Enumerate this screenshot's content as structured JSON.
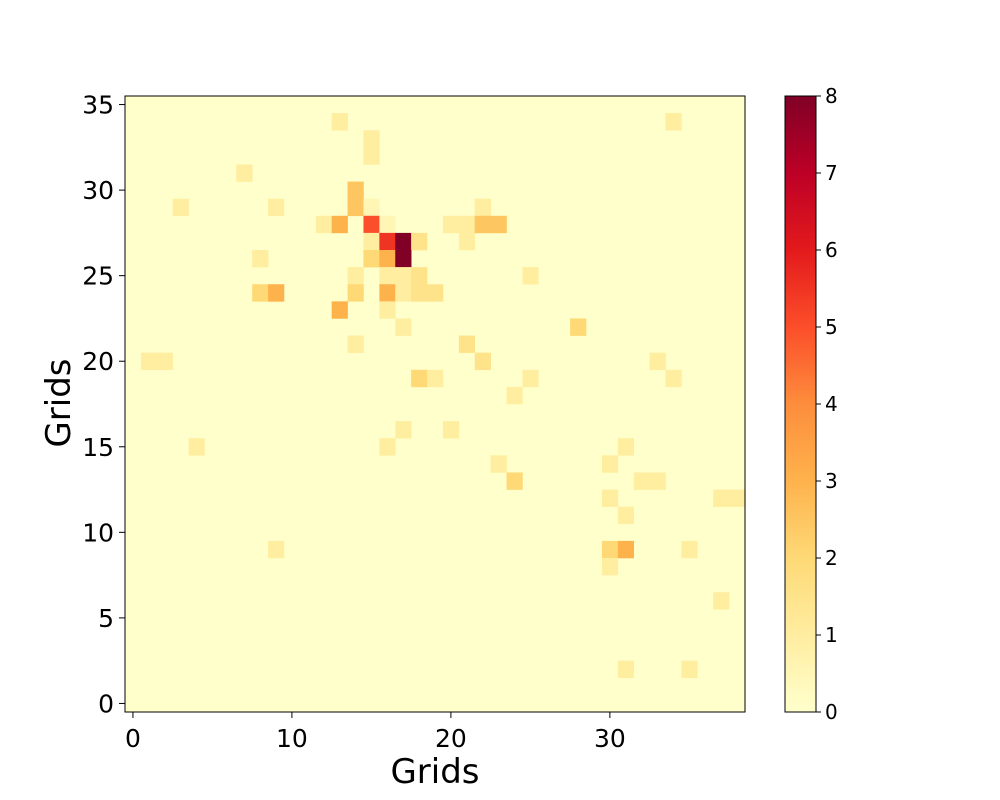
{
  "chart_data": {
    "type": "heatmap",
    "title": "",
    "xlabel": "Grids",
    "ylabel": "Grids",
    "cols": 39,
    "rows": 36,
    "xlim": [
      -0.5,
      38.5
    ],
    "ylim": [
      -0.5,
      35.5
    ],
    "xticks": [
      0,
      10,
      20,
      30
    ],
    "yticks": [
      0,
      5,
      10,
      15,
      20,
      25,
      30,
      35
    ],
    "colorbar": {
      "min": 0,
      "max": 8,
      "ticks": [
        0,
        1,
        2,
        3,
        4,
        5,
        6,
        7,
        8
      ],
      "colormap": "YlOrRd",
      "stops": [
        "#ffffcc",
        "#ffeda0",
        "#fed976",
        "#feb24c",
        "#fd8d3c",
        "#fc4e2a",
        "#e31a1c",
        "#bd0026",
        "#800026"
      ]
    },
    "background_value": 0,
    "cells": [
      {
        "x": 13,
        "y": 34,
        "v": 1
      },
      {
        "x": 34,
        "y": 34,
        "v": 1
      },
      {
        "x": 15,
        "y": 33,
        "v": 1
      },
      {
        "x": 15,
        "y": 32,
        "v": 1
      },
      {
        "x": 7,
        "y": 31,
        "v": 1
      },
      {
        "x": 14,
        "y": 30,
        "v": 2.5
      },
      {
        "x": 3,
        "y": 29,
        "v": 1
      },
      {
        "x": 9,
        "y": 29,
        "v": 1
      },
      {
        "x": 14,
        "y": 29,
        "v": 2.5
      },
      {
        "x": 15,
        "y": 29,
        "v": 0.5
      },
      {
        "x": 22,
        "y": 29,
        "v": 1
      },
      {
        "x": 12,
        "y": 28,
        "v": 1
      },
      {
        "x": 13,
        "y": 28,
        "v": 3
      },
      {
        "x": 15,
        "y": 28,
        "v": 5
      },
      {
        "x": 16,
        "y": 28,
        "v": 0.5
      },
      {
        "x": 20,
        "y": 28,
        "v": 1
      },
      {
        "x": 21,
        "y": 28,
        "v": 1
      },
      {
        "x": 22,
        "y": 28,
        "v": 2.5
      },
      {
        "x": 23,
        "y": 28,
        "v": 2.5
      },
      {
        "x": 15,
        "y": 27,
        "v": 1
      },
      {
        "x": 16,
        "y": 27,
        "v": 5.5
      },
      {
        "x": 17,
        "y": 27,
        "v": 8
      },
      {
        "x": 18,
        "y": 27,
        "v": 1.5
      },
      {
        "x": 21,
        "y": 27,
        "v": 1
      },
      {
        "x": 8,
        "y": 26,
        "v": 1
      },
      {
        "x": 15,
        "y": 26,
        "v": 2
      },
      {
        "x": 16,
        "y": 26,
        "v": 3
      },
      {
        "x": 17,
        "y": 26,
        "v": 8
      },
      {
        "x": 14,
        "y": 25,
        "v": 1
      },
      {
        "x": 16,
        "y": 25,
        "v": 1
      },
      {
        "x": 17,
        "y": 25,
        "v": 1
      },
      {
        "x": 18,
        "y": 25,
        "v": 1.5
      },
      {
        "x": 25,
        "y": 25,
        "v": 1
      },
      {
        "x": 8,
        "y": 24,
        "v": 2
      },
      {
        "x": 9,
        "y": 24,
        "v": 3
      },
      {
        "x": 14,
        "y": 24,
        "v": 2
      },
      {
        "x": 16,
        "y": 24,
        "v": 3
      },
      {
        "x": 17,
        "y": 24,
        "v": 1
      },
      {
        "x": 18,
        "y": 24,
        "v": 1.5
      },
      {
        "x": 19,
        "y": 24,
        "v": 1.5
      },
      {
        "x": 13,
        "y": 23,
        "v": 3
      },
      {
        "x": 16,
        "y": 23,
        "v": 1
      },
      {
        "x": 17,
        "y": 22,
        "v": 1
      },
      {
        "x": 28,
        "y": 22,
        "v": 2
      },
      {
        "x": 14,
        "y": 21,
        "v": 1
      },
      {
        "x": 21,
        "y": 21,
        "v": 1.5
      },
      {
        "x": 1,
        "y": 20,
        "v": 1
      },
      {
        "x": 2,
        "y": 20,
        "v": 1
      },
      {
        "x": 22,
        "y": 20,
        "v": 1.5
      },
      {
        "x": 33,
        "y": 20,
        "v": 1
      },
      {
        "x": 18,
        "y": 19,
        "v": 2
      },
      {
        "x": 19,
        "y": 19,
        "v": 1
      },
      {
        "x": 25,
        "y": 19,
        "v": 1
      },
      {
        "x": 34,
        "y": 19,
        "v": 1
      },
      {
        "x": 24,
        "y": 18,
        "v": 1
      },
      {
        "x": 17,
        "y": 16,
        "v": 1
      },
      {
        "x": 20,
        "y": 16,
        "v": 1
      },
      {
        "x": 4,
        "y": 15,
        "v": 1
      },
      {
        "x": 16,
        "y": 15,
        "v": 1
      },
      {
        "x": 31,
        "y": 15,
        "v": 1
      },
      {
        "x": 23,
        "y": 14,
        "v": 1
      },
      {
        "x": 30,
        "y": 14,
        "v": 1
      },
      {
        "x": 24,
        "y": 13,
        "v": 2
      },
      {
        "x": 32,
        "y": 13,
        "v": 1
      },
      {
        "x": 33,
        "y": 13,
        "v": 1
      },
      {
        "x": 30,
        "y": 12,
        "v": 1
      },
      {
        "x": 37,
        "y": 12,
        "v": 1
      },
      {
        "x": 38,
        "y": 12,
        "v": 1
      },
      {
        "x": 31,
        "y": 11,
        "v": 1
      },
      {
        "x": 9,
        "y": 9,
        "v": 1
      },
      {
        "x": 30,
        "y": 9,
        "v": 2
      },
      {
        "x": 31,
        "y": 9,
        "v": 3
      },
      {
        "x": 35,
        "y": 9,
        "v": 1
      },
      {
        "x": 30,
        "y": 8,
        "v": 1
      },
      {
        "x": 37,
        "y": 6,
        "v": 1
      },
      {
        "x": 31,
        "y": 2,
        "v": 1
      },
      {
        "x": 35,
        "y": 2,
        "v": 1
      }
    ]
  }
}
